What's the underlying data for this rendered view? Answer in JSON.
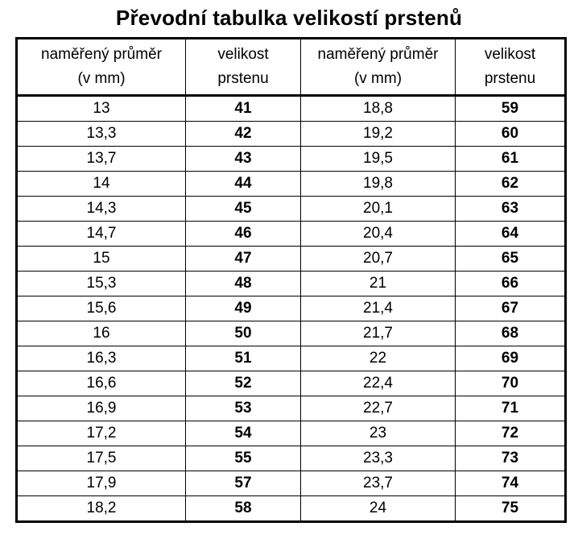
{
  "title": "Převodní tabulka velikostí prstenů",
  "headers": {
    "diameter_line1": "naměřený průměr",
    "diameter_line2": "(v mm)",
    "size_line1": "velikost",
    "size_line2": "prstenu"
  },
  "rows": [
    {
      "d1": "13",
      "s1": "41",
      "d2": "18,8",
      "s2": "59"
    },
    {
      "d1": "13,3",
      "s1": "42",
      "d2": "19,2",
      "s2": "60"
    },
    {
      "d1": "13,7",
      "s1": "43",
      "d2": "19,5",
      "s2": "61"
    },
    {
      "d1": "14",
      "s1": "44",
      "d2": "19,8",
      "s2": "62"
    },
    {
      "d1": "14,3",
      "s1": "45",
      "d2": "20,1",
      "s2": "63"
    },
    {
      "d1": "14,7",
      "s1": "46",
      "d2": "20,4",
      "s2": "64"
    },
    {
      "d1": "15",
      "s1": "47",
      "d2": "20,7",
      "s2": "65"
    },
    {
      "d1": "15,3",
      "s1": "48",
      "d2": "21",
      "s2": "66"
    },
    {
      "d1": "15,6",
      "s1": "49",
      "d2": "21,4",
      "s2": "67"
    },
    {
      "d1": "16",
      "s1": "50",
      "d2": "21,7",
      "s2": "68"
    },
    {
      "d1": "16,3",
      "s1": "51",
      "d2": "22",
      "s2": "69"
    },
    {
      "d1": "16,6",
      "s1": "52",
      "d2": "22,4",
      "s2": "70"
    },
    {
      "d1": "16,9",
      "s1": "53",
      "d2": "22,7",
      "s2": "71"
    },
    {
      "d1": "17,2",
      "s1": "54",
      "d2": "23",
      "s2": "72"
    },
    {
      "d1": "17,5",
      "s1": "55",
      "d2": "23,3",
      "s2": "73"
    },
    {
      "d1": "17,9",
      "s1": "57",
      "d2": "23,7",
      "s2": "74"
    },
    {
      "d1": "18,2",
      "s1": "58",
      "d2": "24",
      "s2": "75"
    }
  ]
}
